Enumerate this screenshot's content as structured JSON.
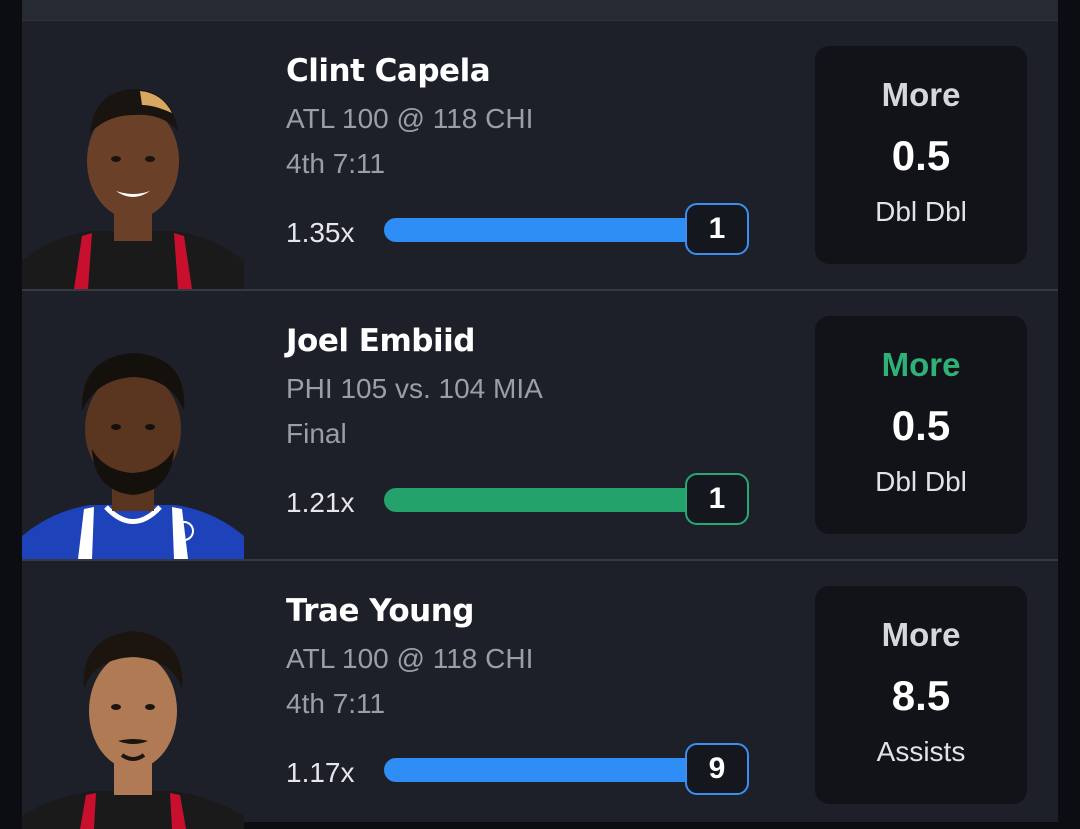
{
  "colors": {
    "blue_bar": "#2f8ef5",
    "green_bar": "#23a36b",
    "won_text": "#2fb277",
    "card_bg": "#1d2029",
    "pick_box_bg": "#111318"
  },
  "picks": [
    {
      "player": "Clint Capela",
      "game": "ATL 100 @ 118 CHI",
      "status": "4th 7:11",
      "multiplier": "1.35x",
      "current": "1",
      "progress": 1.0,
      "bar_color": "blue",
      "direction": "More",
      "direction_state": "pending",
      "line": "0.5",
      "stat": "Dbl Dbl",
      "jersey_color": "#c8102e"
    },
    {
      "player": "Joel Embiid",
      "game": "PHI 105 vs. 104 MIA",
      "status": "Final",
      "multiplier": "1.21x",
      "current": "1",
      "progress": 1.0,
      "bar_color": "green",
      "direction": "More",
      "direction_state": "won",
      "line": "0.5",
      "stat": "Dbl Dbl",
      "jersey_color": "#1d42ba"
    },
    {
      "player": "Trae Young",
      "game": "ATL 100 @ 118 CHI",
      "status": "4th 7:11",
      "multiplier": "1.17x",
      "current": "9",
      "progress": 1.0,
      "bar_color": "blue",
      "direction": "More",
      "direction_state": "pending",
      "line": "8.5",
      "stat": "Assists",
      "jersey_color": "#c8102e"
    }
  ]
}
